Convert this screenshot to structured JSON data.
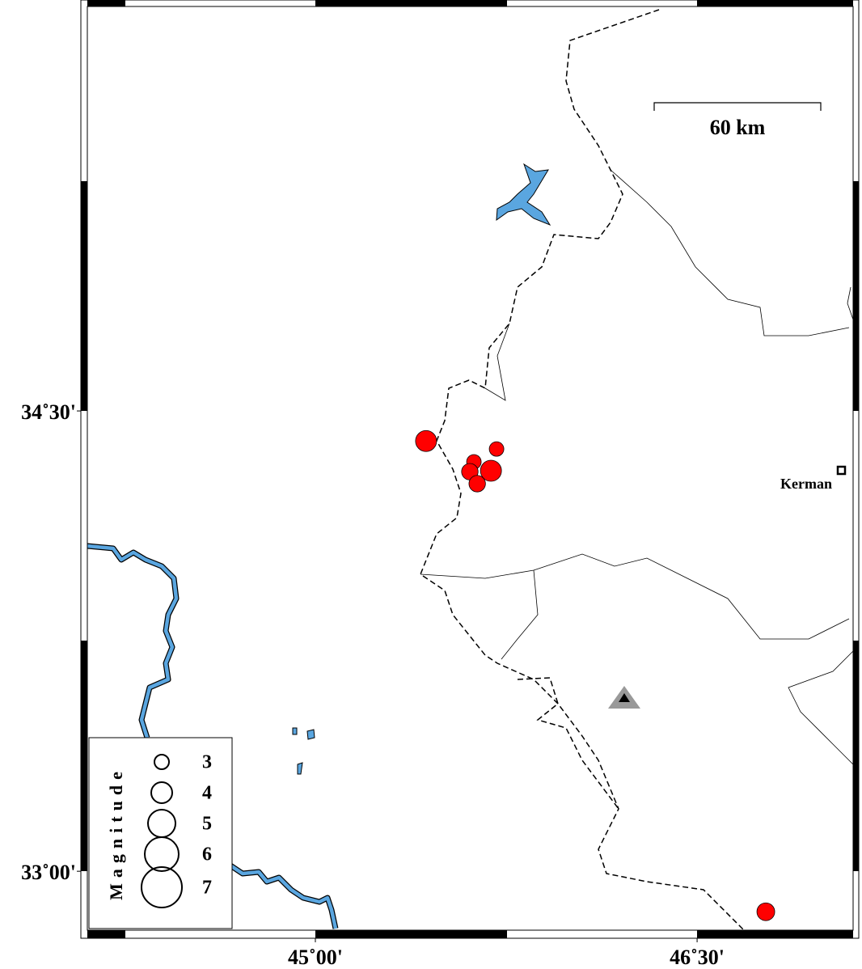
{
  "map": {
    "xlim": [
      44.104,
      47.113
    ],
    "ylim": [
      32.808,
      35.818
    ],
    "xticks": [
      {
        "value": 45,
        "label": "45˚00'"
      },
      {
        "value": 46.5,
        "label": "46˚30'"
      }
    ],
    "yticks": [
      {
        "value": 34.5,
        "label": "34˚30'"
      },
      {
        "value": 33,
        "label": "33˚00'"
      }
    ],
    "scale_bar": "60 km",
    "city": "Kerman",
    "events": {
      "color": "#ff0000",
      "lon": [
        45.435,
        45.712,
        45.623,
        45.607,
        45.636,
        45.69,
        46.77
      ],
      "lat": [
        34.402,
        34.376,
        34.334,
        34.302,
        34.263,
        34.305,
        32.868
      ],
      "magnitude": [
        4,
        3,
        3,
        3.3,
        3.3,
        4,
        3.5
      ]
    },
    "legend": {
      "title": "Magnitude",
      "magnitudes": [
        3,
        4,
        5,
        6,
        7
      ]
    }
  }
}
